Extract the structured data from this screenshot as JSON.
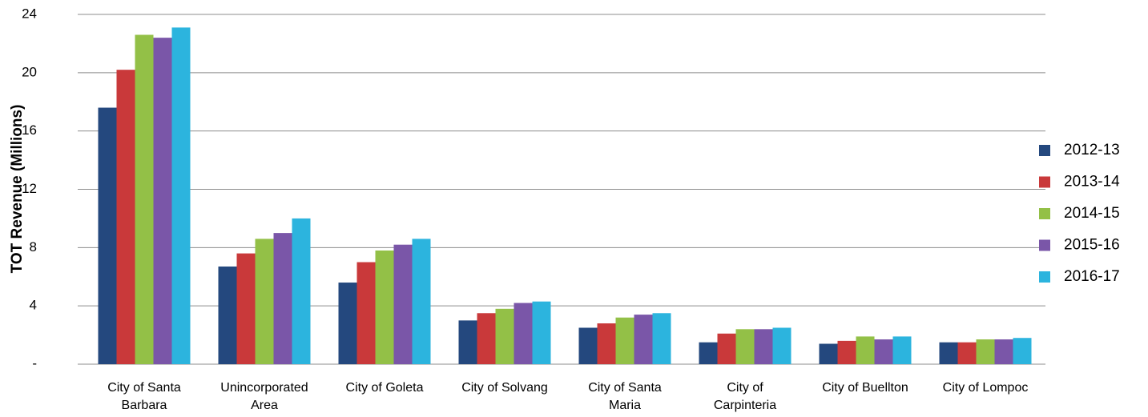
{
  "chart_data": {
    "type": "bar",
    "y_label": "TOT Revenue (Millions)",
    "categories": [
      "City of Santa Barbara",
      "Unincorporated Area",
      "City of Goleta",
      "City of Solvang",
      "City of Santa Maria",
      "City of Carpinteria",
      "City of Buellton",
      "City of Lompoc"
    ],
    "series": [
      {
        "name": "2012-13",
        "color": "#24487e",
        "values": [
          17.6,
          6.7,
          5.6,
          3.0,
          2.5,
          1.5,
          1.4,
          1.5
        ]
      },
      {
        "name": "2013-14",
        "color": "#c9393a",
        "values": [
          20.2,
          7.6,
          7.0,
          3.5,
          2.8,
          2.1,
          1.6,
          1.5
        ]
      },
      {
        "name": "2014-15",
        "color": "#93c047",
        "values": [
          22.6,
          8.6,
          7.8,
          3.8,
          3.2,
          2.4,
          1.9,
          1.7
        ]
      },
      {
        "name": "2015-16",
        "color": "#7a56a8",
        "values": [
          22.4,
          9.0,
          8.2,
          4.2,
          3.4,
          2.4,
          1.7,
          1.7
        ]
      },
      {
        "name": "2016-17",
        "color": "#2cb4de",
        "values": [
          23.1,
          10.0,
          8.6,
          4.3,
          3.5,
          2.5,
          1.9,
          1.8
        ]
      }
    ],
    "ylim": [
      0,
      24
    ],
    "yticks": [
      {
        "value": 0,
        "label": "-"
      },
      4,
      8,
      12,
      16,
      20,
      24
    ],
    "grid": true,
    "legend": "right"
  }
}
